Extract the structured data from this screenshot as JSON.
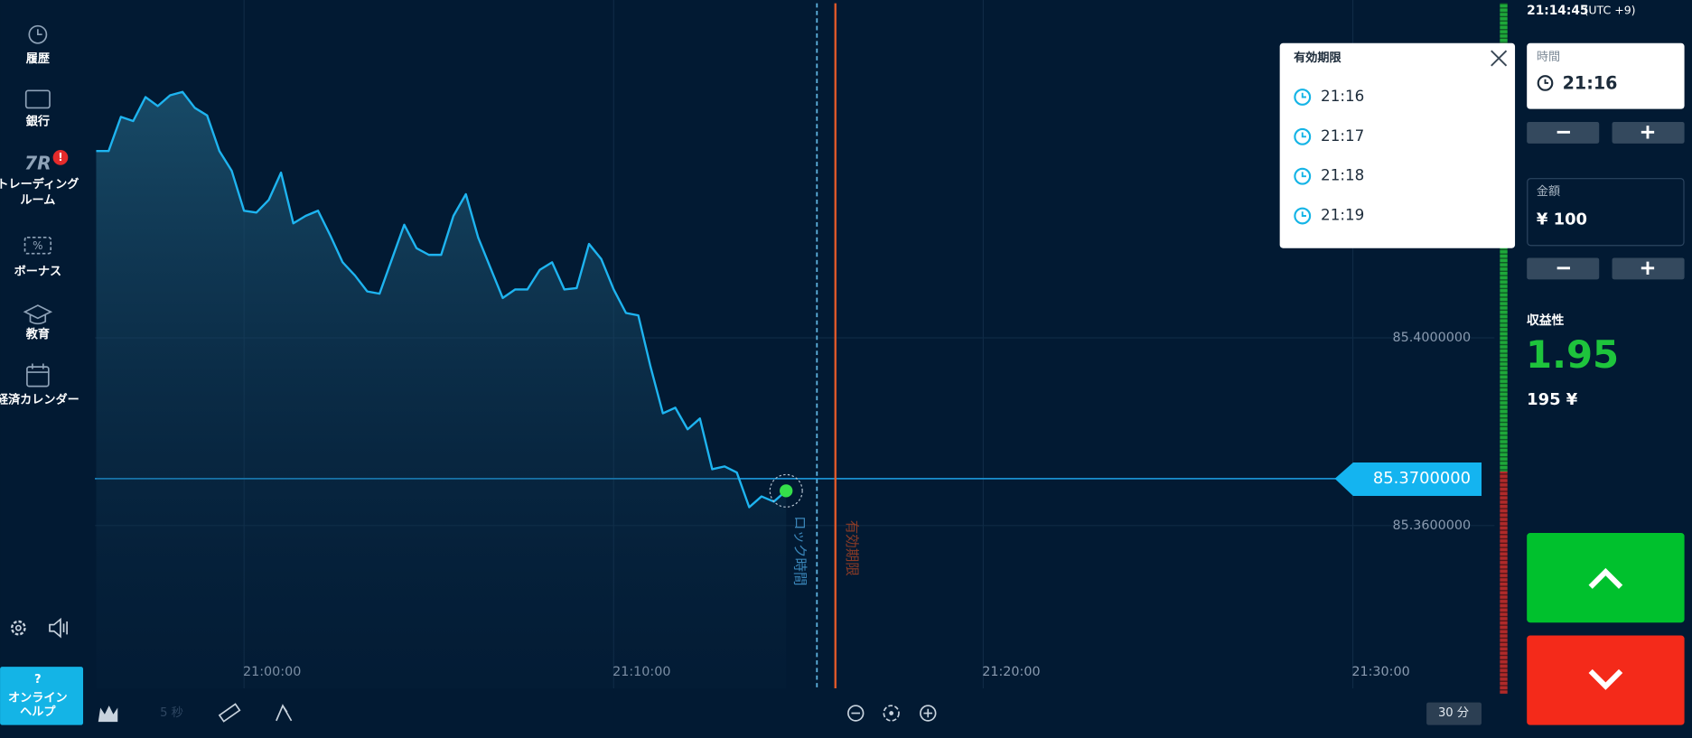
{
  "sidebar": {
    "items": [
      {
        "lines": [
          "履歴"
        ]
      },
      {
        "lines": [
          "銀行"
        ]
      },
      {
        "lines": [
          "トレーディング",
          "ルーム"
        ],
        "badge": "!"
      },
      {
        "lines": [
          "ボーナス"
        ]
      },
      {
        "lines": [
          "教育"
        ]
      },
      {
        "lines": [
          "経済カレンダー"
        ]
      }
    ],
    "help": {
      "icon": "?",
      "lines": [
        "オンライン",
        "ヘルプ"
      ]
    }
  },
  "toolbar": {
    "interval": "5 秒",
    "timeframe": "30 分"
  },
  "chart_data": {
    "type": "line",
    "color": "#1eb4f0",
    "x": [
      "20:56:00",
      "20:56:20",
      "20:56:40",
      "20:57:00",
      "20:57:20",
      "20:57:40",
      "20:58:00",
      "20:58:20",
      "20:58:40",
      "20:59:00",
      "20:59:20",
      "20:59:40",
      "21:00:00",
      "21:00:20",
      "21:00:40",
      "21:01:00",
      "21:01:20",
      "21:01:40",
      "21:02:00",
      "21:02:20",
      "21:02:40",
      "21:03:00",
      "21:03:20",
      "21:03:40",
      "21:04:00",
      "21:04:20",
      "21:04:40",
      "21:05:00",
      "21:05:20",
      "21:05:40",
      "21:06:00",
      "21:06:20",
      "21:06:40",
      "21:07:00",
      "21:07:20",
      "21:07:40",
      "21:08:00",
      "21:08:20",
      "21:08:40",
      "21:09:00",
      "21:09:20",
      "21:09:40",
      "21:10:00",
      "21:10:20",
      "21:10:40",
      "21:11:00",
      "21:11:20",
      "21:11:40",
      "21:12:00",
      "21:12:20",
      "21:12:40",
      "21:13:00",
      "21:13:20",
      "21:13:40",
      "21:14:00",
      "21:14:20",
      "21:14:40"
    ],
    "values": [
      85.4398,
      85.4398,
      85.4471,
      85.4462,
      85.4513,
      85.4494,
      85.4517,
      85.4524,
      85.449,
      85.4474,
      85.4398,
      85.4356,
      85.4271,
      85.4267,
      85.4294,
      85.4352,
      85.4244,
      85.426,
      85.4271,
      85.4218,
      85.4161,
      85.4133,
      85.4099,
      85.4094,
      85.4168,
      85.4241,
      85.4191,
      85.4177,
      85.4177,
      85.426,
      85.4306,
      85.4214,
      85.4149,
      85.4085,
      85.4103,
      85.4103,
      85.4145,
      85.4161,
      85.4103,
      85.4106,
      85.42,
      85.4168,
      85.4103,
      85.4053,
      85.4048,
      85.3938,
      85.3839,
      85.3851,
      85.3805,
      85.3828,
      85.372,
      85.3726,
      85.3713,
      85.3639,
      85.3662,
      85.3651,
      85.3674
    ],
    "xlim": [
      "20:55:58",
      "21:33:50"
    ],
    "xticks": [
      "21:00:00",
      "21:10:00",
      "21:20:00",
      "21:30:00"
    ],
    "ylim": [
      85.3253,
      85.472
    ],
    "yticks": [
      {
        "value": 85.4,
        "label": "85.4000000"
      },
      {
        "value": 85.36,
        "label": "85.3600000"
      }
    ],
    "grid": true,
    "current_price": {
      "value": 85.37,
      "label": "85.3700000"
    },
    "lock_line": {
      "x": "21:15:30",
      "label": "ロック時間"
    },
    "expiry_line": {
      "x": "21:16:00",
      "label": "有効期限"
    }
  },
  "expiry_dropdown": {
    "title": "有効期限",
    "options": [
      "21:16",
      "21:17",
      "21:18",
      "21:19"
    ]
  },
  "clock": {
    "time": "21:14:45",
    "zone": "(UTC +9)"
  },
  "trade_panel": {
    "time_label": "時間",
    "time_value": "21:16",
    "amount_label": "金額",
    "amount_value": "¥ 100",
    "payout_label": "収益性",
    "payout": "1.95",
    "profit": "195 ¥"
  }
}
